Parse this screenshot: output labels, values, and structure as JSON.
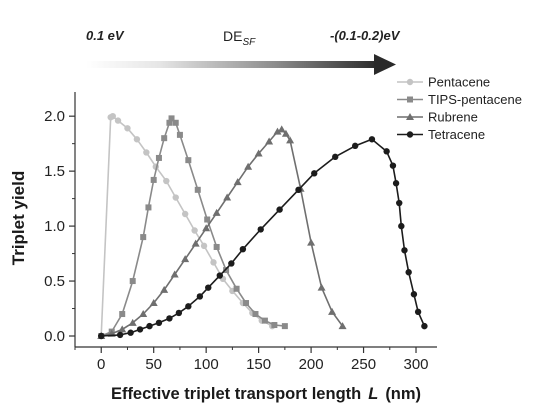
{
  "annotations": {
    "left_energy": "0.1 eV",
    "delta_label": "DE",
    "delta_subscript": "SF",
    "right_energy": "-(0.1-0.2)eV"
  },
  "chart_data": {
    "type": "line",
    "xlabel_main": "Effective triplet transport length",
    "xlabel_var": "L",
    "xlabel_unit": "(nm)",
    "ylabel": "Triplet yield",
    "xlim": [
      -25,
      320
    ],
    "ylim": [
      -0.1,
      2.22
    ],
    "x_ticks": [
      0,
      50,
      100,
      150,
      200,
      250,
      300
    ],
    "y_ticks": [
      0.0,
      0.5,
      1.0,
      1.5,
      2.0
    ],
    "y_tick_labels": [
      "0.0",
      "0.5",
      "1.0",
      "1.5",
      "2.0"
    ],
    "grid": false,
    "legend_position": "top-right",
    "series": [
      {
        "name": "Pentacene",
        "color": "#c4c4c4",
        "marker": "circle",
        "x": [
          0,
          9,
          11,
          16,
          25,
          34,
          43,
          52,
          62,
          71,
          80,
          89,
          98,
          107,
          116,
          125,
          135,
          144,
          153,
          163
        ],
        "y": [
          0.0,
          1.99,
          2.0,
          1.96,
          1.89,
          1.79,
          1.67,
          1.54,
          1.41,
          1.26,
          1.11,
          0.96,
          0.82,
          0.67,
          0.52,
          0.41,
          0.3,
          0.21,
          0.14,
          0.09
        ]
      },
      {
        "name": "TIPS-pentacene",
        "color": "#8a8a8a",
        "marker": "square",
        "x": [
          0,
          10,
          20,
          30,
          40,
          45,
          50,
          55,
          60,
          65,
          67,
          71,
          75,
          83,
          92,
          101,
          110,
          119,
          129,
          138,
          147,
          156,
          165,
          175
        ],
        "y": [
          0.0,
          0.04,
          0.2,
          0.5,
          0.9,
          1.17,
          1.42,
          1.62,
          1.8,
          1.94,
          1.98,
          1.94,
          1.83,
          1.6,
          1.33,
          1.06,
          0.81,
          0.6,
          0.43,
          0.3,
          0.2,
          0.14,
          0.1,
          0.09
        ]
      },
      {
        "name": "Rubrene",
        "color": "#6f6f6f",
        "marker": "triangle",
        "x": [
          0,
          10,
          20,
          30,
          40,
          50,
          60,
          70,
          80,
          90,
          100,
          110,
          120,
          130,
          140,
          150,
          160,
          168,
          172,
          176,
          180,
          190,
          200,
          210,
          220,
          230
        ],
        "y": [
          0.0,
          0.02,
          0.06,
          0.12,
          0.2,
          0.3,
          0.42,
          0.56,
          0.7,
          0.84,
          0.98,
          1.12,
          1.26,
          1.4,
          1.54,
          1.66,
          1.77,
          1.86,
          1.88,
          1.84,
          1.78,
          1.34,
          0.85,
          0.44,
          0.22,
          0.09
        ]
      },
      {
        "name": "Tetracene",
        "color": "#1c1c1c",
        "marker": "circle",
        "x": [
          0,
          18,
          28,
          37,
          46,
          55,
          65,
          74,
          83,
          94,
          102,
          113,
          124,
          135,
          152,
          170,
          188,
          203,
          223,
          242,
          258,
          272,
          278,
          281,
          284,
          286,
          289,
          293,
          298,
          302,
          308
        ],
        "y": [
          0.0,
          0.01,
          0.03,
          0.06,
          0.09,
          0.12,
          0.16,
          0.21,
          0.27,
          0.36,
          0.44,
          0.55,
          0.66,
          0.79,
          0.97,
          1.15,
          1.33,
          1.48,
          1.63,
          1.73,
          1.79,
          1.68,
          1.55,
          1.39,
          1.21,
          1.0,
          0.78,
          0.58,
          0.38,
          0.22,
          0.09
        ]
      }
    ]
  }
}
